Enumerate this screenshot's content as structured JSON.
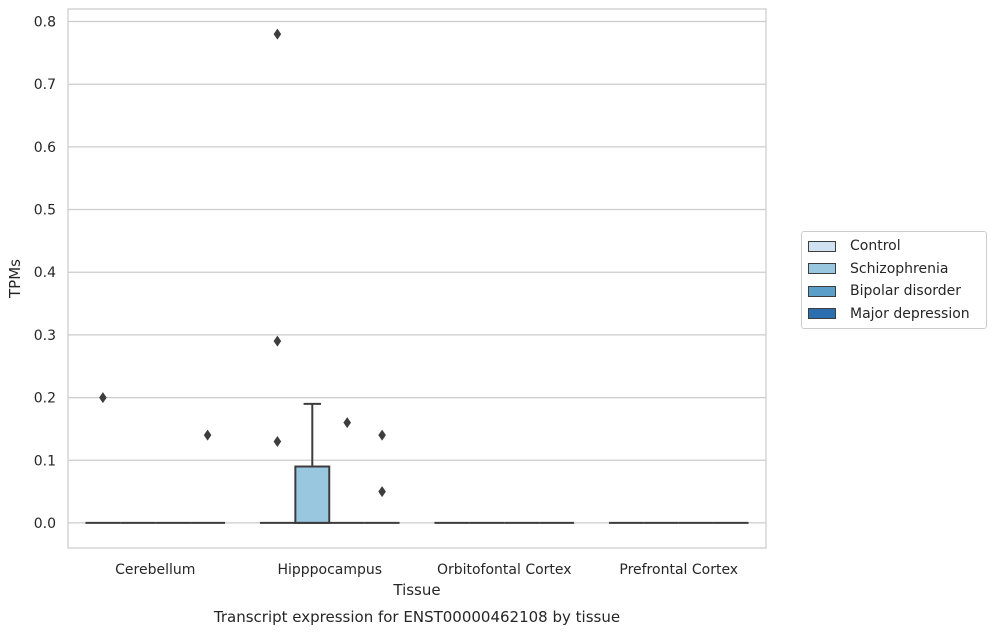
{
  "chart_data": {
    "type": "box",
    "title": "Transcript expression for ENST00000462108 by tissue",
    "xlabel": "Tissue",
    "ylabel": "TPMs",
    "ylim": [
      -0.04,
      0.82
    ],
    "yticks": [
      "0.0",
      "0.1",
      "0.2",
      "0.3",
      "0.4",
      "0.5",
      "0.6",
      "0.7",
      "0.8"
    ],
    "categories": [
      "Cerebellum",
      "Hipppocampus",
      "Orbitofontal Cortex",
      "Prefrontal Cortex"
    ],
    "legend_position": "right",
    "grid": true,
    "series": [
      {
        "name": "Control",
        "color": "#d0e2f2",
        "boxes": [
          {
            "category": "Cerebellum",
            "q1": 0,
            "median": 0,
            "q3": 0,
            "whisker_low": 0,
            "whisker_high": 0,
            "outliers": [
              0.2
            ]
          },
          {
            "category": "Hipppocampus",
            "q1": 0,
            "median": 0,
            "q3": 0,
            "whisker_low": 0,
            "whisker_high": 0,
            "outliers": [
              0.13,
              0.29,
              0.78
            ]
          },
          {
            "category": "Orbitofontal Cortex",
            "q1": 0,
            "median": 0,
            "q3": 0,
            "whisker_low": 0,
            "whisker_high": 0,
            "outliers": []
          },
          {
            "category": "Prefrontal Cortex",
            "q1": 0,
            "median": 0,
            "q3": 0,
            "whisker_low": 0,
            "whisker_high": 0,
            "outliers": []
          }
        ]
      },
      {
        "name": "Schizophrenia",
        "color": "#9ac7e0",
        "boxes": [
          {
            "category": "Cerebellum",
            "q1": 0,
            "median": 0,
            "q3": 0,
            "whisker_low": 0,
            "whisker_high": 0,
            "outliers": []
          },
          {
            "category": "Hipppocampus",
            "q1": 0,
            "median": 0,
            "q3": 0.09,
            "whisker_low": 0,
            "whisker_high": 0.19,
            "outliers": []
          },
          {
            "category": "Orbitofontal Cortex",
            "q1": 0,
            "median": 0,
            "q3": 0,
            "whisker_low": 0,
            "whisker_high": 0,
            "outliers": []
          },
          {
            "category": "Prefrontal Cortex",
            "q1": 0,
            "median": 0,
            "q3": 0,
            "whisker_low": 0,
            "whisker_high": 0,
            "outliers": []
          }
        ]
      },
      {
        "name": "Bipolar disorder",
        "color": "#5a9ec9",
        "boxes": [
          {
            "category": "Cerebellum",
            "q1": 0,
            "median": 0,
            "q3": 0,
            "whisker_low": 0,
            "whisker_high": 0,
            "outliers": []
          },
          {
            "category": "Hipppocampus",
            "q1": 0,
            "median": 0,
            "q3": 0,
            "whisker_low": 0,
            "whisker_high": 0,
            "outliers": [
              0.16
            ]
          },
          {
            "category": "Orbitofontal Cortex",
            "q1": 0,
            "median": 0,
            "q3": 0,
            "whisker_low": 0,
            "whisker_high": 0,
            "outliers": []
          },
          {
            "category": "Prefrontal Cortex",
            "q1": 0,
            "median": 0,
            "q3": 0,
            "whisker_low": 0,
            "whisker_high": 0,
            "outliers": []
          }
        ]
      },
      {
        "name": "Major depression",
        "color": "#2c6fae",
        "boxes": [
          {
            "category": "Cerebellum",
            "q1": 0,
            "median": 0,
            "q3": 0,
            "whisker_low": 0,
            "whisker_high": 0,
            "outliers": [
              0.14
            ]
          },
          {
            "category": "Hipppocampus",
            "q1": 0,
            "median": 0,
            "q3": 0,
            "whisker_low": 0,
            "whisker_high": 0,
            "outliers": [
              0.14,
              0.05
            ]
          },
          {
            "category": "Orbitofontal Cortex",
            "q1": 0,
            "median": 0,
            "q3": 0,
            "whisker_low": 0,
            "whisker_high": 0,
            "outliers": []
          },
          {
            "category": "Prefrontal Cortex",
            "q1": 0,
            "median": 0,
            "q3": 0,
            "whisker_low": 0,
            "whisker_high": 0,
            "outliers": []
          }
        ]
      }
    ]
  }
}
